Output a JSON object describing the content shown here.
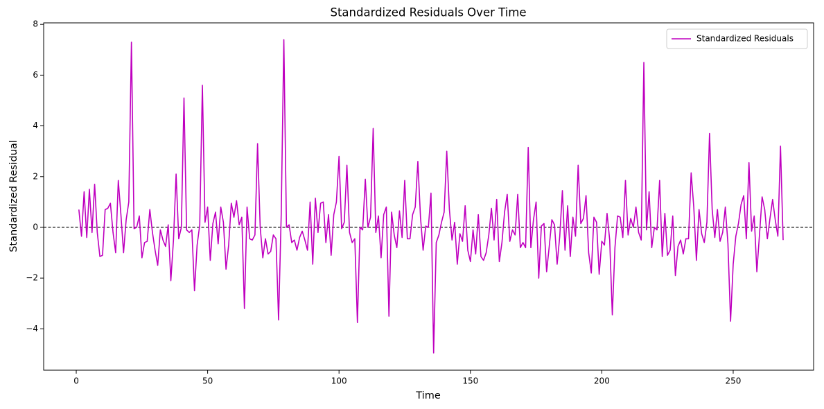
{
  "chart_data": {
    "type": "line",
    "title": "Standardized Residuals Over Time",
    "x_label": "Time",
    "y_label": "Standardized Residual",
    "x": [
      1,
      2,
      3,
      4,
      5,
      6,
      7,
      8,
      9,
      10,
      11,
      12,
      13,
      14,
      15,
      16,
      17,
      18,
      19,
      20,
      21,
      22,
      23,
      24,
      25,
      26,
      27,
      28,
      29,
      30,
      31,
      32,
      33,
      34,
      35,
      36,
      37,
      38,
      39,
      40,
      41,
      42,
      43,
      44,
      45,
      46,
      47,
      48,
      49,
      50,
      51,
      52,
      53,
      54,
      55,
      56,
      57,
      58,
      59,
      60,
      61,
      62,
      63,
      64,
      65,
      66,
      67,
      68,
      69,
      70,
      71,
      72,
      73,
      74,
      75,
      76,
      77,
      78,
      79,
      80,
      81,
      82,
      83,
      84,
      85,
      86,
      87,
      88,
      89,
      90,
      91,
      92,
      93,
      94,
      95,
      96,
      97,
      98,
      99,
      100,
      101,
      102,
      103,
      104,
      105,
      106,
      107,
      108,
      109,
      110,
      111,
      112,
      113,
      114,
      115,
      116,
      117,
      118,
      119,
      120,
      121,
      122,
      123,
      124,
      125,
      126,
      127,
      128,
      129,
      130,
      131,
      132,
      133,
      134,
      135,
      136,
      137,
      138,
      139,
      140,
      141,
      142,
      143,
      144,
      145,
      146,
      147,
      148,
      149,
      150,
      151,
      152,
      153,
      154,
      155,
      156,
      157,
      158,
      159,
      160,
      161,
      162,
      163,
      164,
      165,
      166,
      167,
      168,
      169,
      170,
      171,
      172,
      173,
      174,
      175,
      176,
      177,
      178,
      179,
      180,
      181,
      182,
      183,
      184,
      185,
      186,
      187,
      188,
      189,
      190,
      191,
      192,
      193,
      194,
      195,
      196,
      197,
      198,
      199,
      200,
      201,
      202,
      203,
      204,
      205,
      206,
      207,
      208,
      209,
      210,
      211,
      212,
      213,
      214,
      215,
      216,
      217,
      218,
      219,
      220,
      221,
      222,
      223,
      224,
      225,
      226,
      227,
      228,
      229,
      230,
      231,
      232,
      233,
      234,
      235,
      236,
      237,
      238,
      239,
      240,
      241,
      242,
      243,
      244,
      245,
      246,
      247,
      248,
      249,
      250,
      251,
      252,
      253,
      254,
      255,
      256,
      257,
      258,
      259,
      260,
      261,
      262,
      263,
      264,
      265,
      266,
      267,
      268,
      269
    ],
    "series": [
      {
        "name": "Standardized Residuals",
        "color": "#bf00bf",
        "values": [
          0.7,
          -0.35,
          1.4,
          -0.4,
          1.5,
          -0.2,
          1.7,
          -0.2,
          -1.15,
          -1.1,
          0.7,
          0.75,
          0.95,
          -0.2,
          -1.0,
          1.85,
          0.5,
          -1.0,
          0.3,
          1.0,
          7.3,
          -0.05,
          0.0,
          0.45,
          -1.2,
          -0.6,
          -0.55,
          0.7,
          -0.2,
          -0.9,
          -1.5,
          -0.1,
          -0.5,
          -0.75,
          0.1,
          -2.1,
          -0.5,
          2.1,
          -0.45,
          0.0,
          5.1,
          -0.1,
          -0.2,
          -0.1,
          -2.5,
          -0.7,
          0.1,
          5.6,
          0.2,
          0.8,
          -1.3,
          0.15,
          0.6,
          -0.65,
          0.8,
          0.2,
          -1.65,
          -0.7,
          0.95,
          0.4,
          1.05,
          0.1,
          0.4,
          -3.2,
          0.8,
          -0.45,
          -0.5,
          -0.3,
          3.3,
          0.0,
          -1.2,
          -0.45,
          -1.05,
          -0.95,
          -0.3,
          -0.45,
          -3.65,
          0.5,
          7.4,
          0.0,
          0.1,
          -0.6,
          -0.5,
          -0.9,
          -0.4,
          -0.15,
          -0.5,
          -0.9,
          1.0,
          -1.45,
          1.15,
          -0.2,
          0.95,
          1.0,
          -0.6,
          0.5,
          -1.1,
          0.5,
          1.0,
          2.8,
          -0.05,
          0.2,
          2.45,
          -0.2,
          -0.6,
          -0.45,
          -3.75,
          0.0,
          -0.1,
          1.9,
          0.0,
          0.4,
          3.9,
          -0.2,
          0.45,
          -1.2,
          0.5,
          0.8,
          -3.5,
          0.6,
          -0.3,
          -0.8,
          0.65,
          -0.4,
          1.85,
          -0.45,
          -0.45,
          0.5,
          0.8,
          2.6,
          0.4,
          -0.9,
          0.05,
          0.0,
          1.35,
          -4.95,
          -0.6,
          -0.3,
          0.2,
          0.6,
          3.0,
          0.7,
          -0.5,
          0.2,
          -1.45,
          -0.25,
          -0.55,
          0.85,
          -0.9,
          -1.35,
          -0.1,
          -1.05,
          0.5,
          -1.15,
          -1.3,
          -1.0,
          -0.3,
          0.75,
          -0.5,
          1.1,
          -1.35,
          -0.6,
          0.6,
          1.3,
          -0.55,
          -0.1,
          -0.3,
          1.3,
          -0.8,
          -0.6,
          -0.8,
          3.15,
          -0.8,
          0.3,
          1.0,
          -2.0,
          0.05,
          0.15,
          -1.75,
          -0.75,
          0.3,
          0.1,
          -1.45,
          -0.35,
          1.45,
          -0.9,
          0.85,
          -1.15,
          0.4,
          -0.35,
          2.45,
          0.15,
          0.35,
          1.25,
          -1.0,
          -1.8,
          0.4,
          0.2,
          -1.85,
          -0.55,
          -0.7,
          0.55,
          -0.5,
          -3.45,
          -0.8,
          0.45,
          0.4,
          -0.4,
          1.85,
          -0.3,
          0.35,
          0.0,
          0.8,
          -0.2,
          -0.5,
          6.5,
          -0.1,
          1.4,
          -0.8,
          0.0,
          -0.1,
          1.85,
          -1.15,
          0.55,
          -1.1,
          -0.9,
          0.45,
          -1.9,
          -0.75,
          -0.5,
          -1.05,
          -0.45,
          -0.45,
          2.15,
          0.8,
          -1.3,
          0.7,
          -0.25,
          -0.6,
          0.2,
          3.7,
          0.7,
          -0.4,
          0.7,
          -0.55,
          -0.2,
          0.8,
          -0.65,
          -3.7,
          -1.45,
          -0.35,
          0.15,
          0.9,
          1.25,
          -0.45,
          2.55,
          -0.15,
          0.45,
          -1.75,
          -0.3,
          1.2,
          0.7,
          -0.45,
          0.35,
          1.1,
          0.3,
          -0.35,
          3.2,
          -0.5
        ]
      }
    ],
    "hline": 0,
    "xlim": [
      -12.4,
      280.6
    ],
    "ylim": [
      -5.63,
      8.06
    ],
    "xticks": [
      0,
      50,
      100,
      150,
      200,
      250
    ],
    "yticks": [
      {
        "value": -4,
        "label": "−4"
      },
      {
        "value": -2,
        "label": "−2"
      },
      0,
      2,
      4,
      6,
      8
    ],
    "legend": "upper right",
    "grid": false
  }
}
